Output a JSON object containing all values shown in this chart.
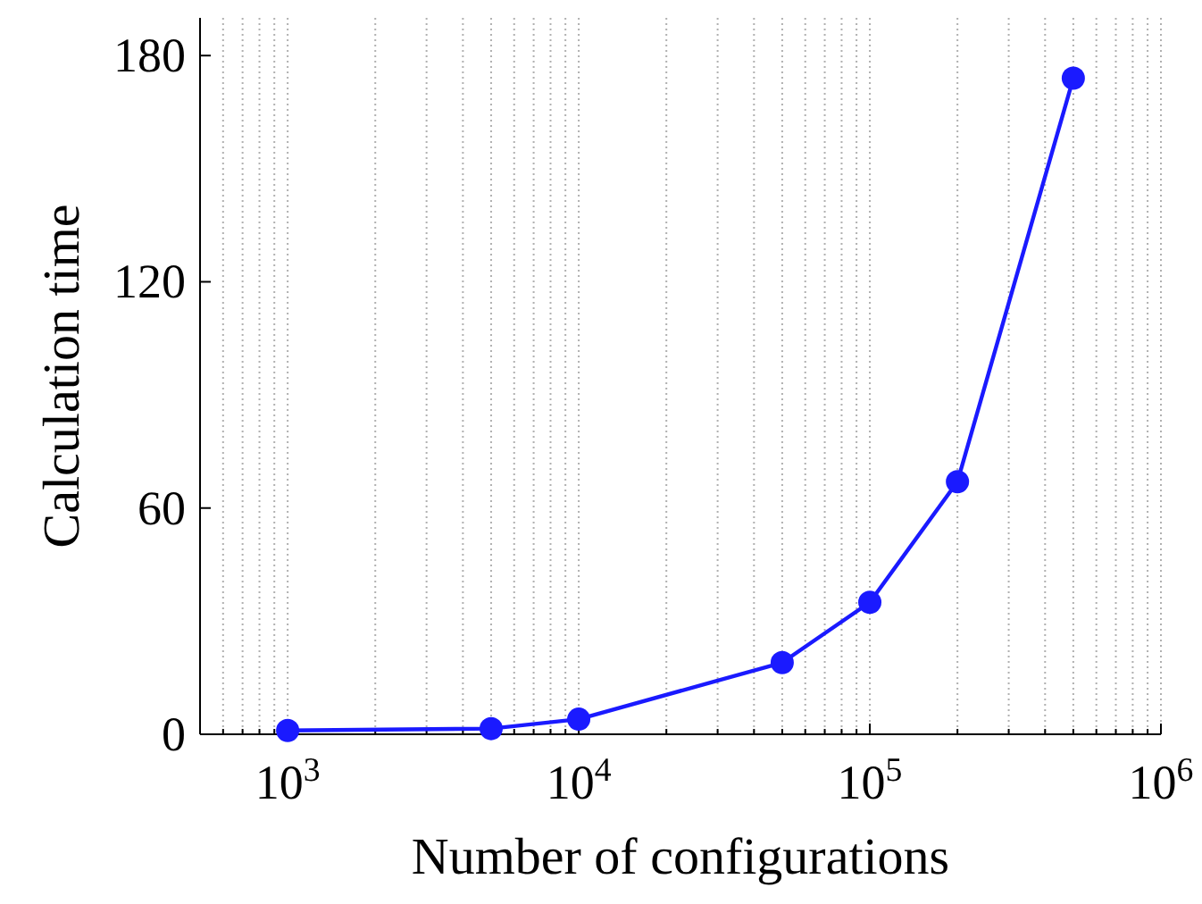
{
  "chart_data": {
    "type": "line",
    "xlabel": "Number of configurations",
    "ylabel": "Calculation time",
    "x": [
      1000,
      5000,
      10000,
      50000,
      100000,
      200000,
      500000
    ],
    "series": [
      {
        "color": "#1a1aff",
        "values": [
          1,
          1.5,
          4,
          19,
          35,
          67,
          174
        ]
      }
    ],
    "log": "x",
    "xlim": [
      500,
      1000000
    ],
    "ylim": [
      0,
      190
    ],
    "yticks": [
      0,
      60,
      120,
      180
    ],
    "xticks": [
      {
        "value": 500,
        "label": null
      },
      {
        "value": 600,
        "label": null
      },
      {
        "value": 700,
        "label": null
      },
      {
        "value": 800,
        "label": null
      },
      {
        "value": 900,
        "label": null
      },
      {
        "value": 1000,
        "label": "10$^{3}$"
      },
      {
        "value": 2000,
        "label": null
      },
      {
        "value": 3000,
        "label": null
      },
      {
        "value": 4000,
        "label": null
      },
      {
        "value": 5000,
        "label": null
      },
      {
        "value": 6000,
        "label": null
      },
      {
        "value": 7000,
        "label": null
      },
      {
        "value": 8000,
        "label": null
      },
      {
        "value": 9000,
        "label": null
      },
      {
        "value": 10000,
        "label": "10$^{4}$"
      },
      {
        "value": 20000,
        "label": null
      },
      {
        "value": 30000,
        "label": null
      },
      {
        "value": 40000,
        "label": null
      },
      {
        "value": 50000,
        "label": null
      },
      {
        "value": 60000,
        "label": null
      },
      {
        "value": 70000,
        "label": null
      },
      {
        "value": 80000,
        "label": null
      },
      {
        "value": 90000,
        "label": null
      },
      {
        "value": 100000,
        "label": "10$^{5}$"
      },
      {
        "value": 200000,
        "label": null
      },
      {
        "value": 300000,
        "label": null
      },
      {
        "value": 400000,
        "label": null
      },
      {
        "value": 500000,
        "label": null
      },
      {
        "value": 600000,
        "label": null
      },
      {
        "value": 700000,
        "label": null
      },
      {
        "value": 800000,
        "label": null
      },
      {
        "value": 900000,
        "label": null
      },
      {
        "value": 1000000,
        "label": "10$^{6}$"
      }
    ],
    "grid": "x",
    "marker": "circle",
    "line_style": "solid"
  }
}
